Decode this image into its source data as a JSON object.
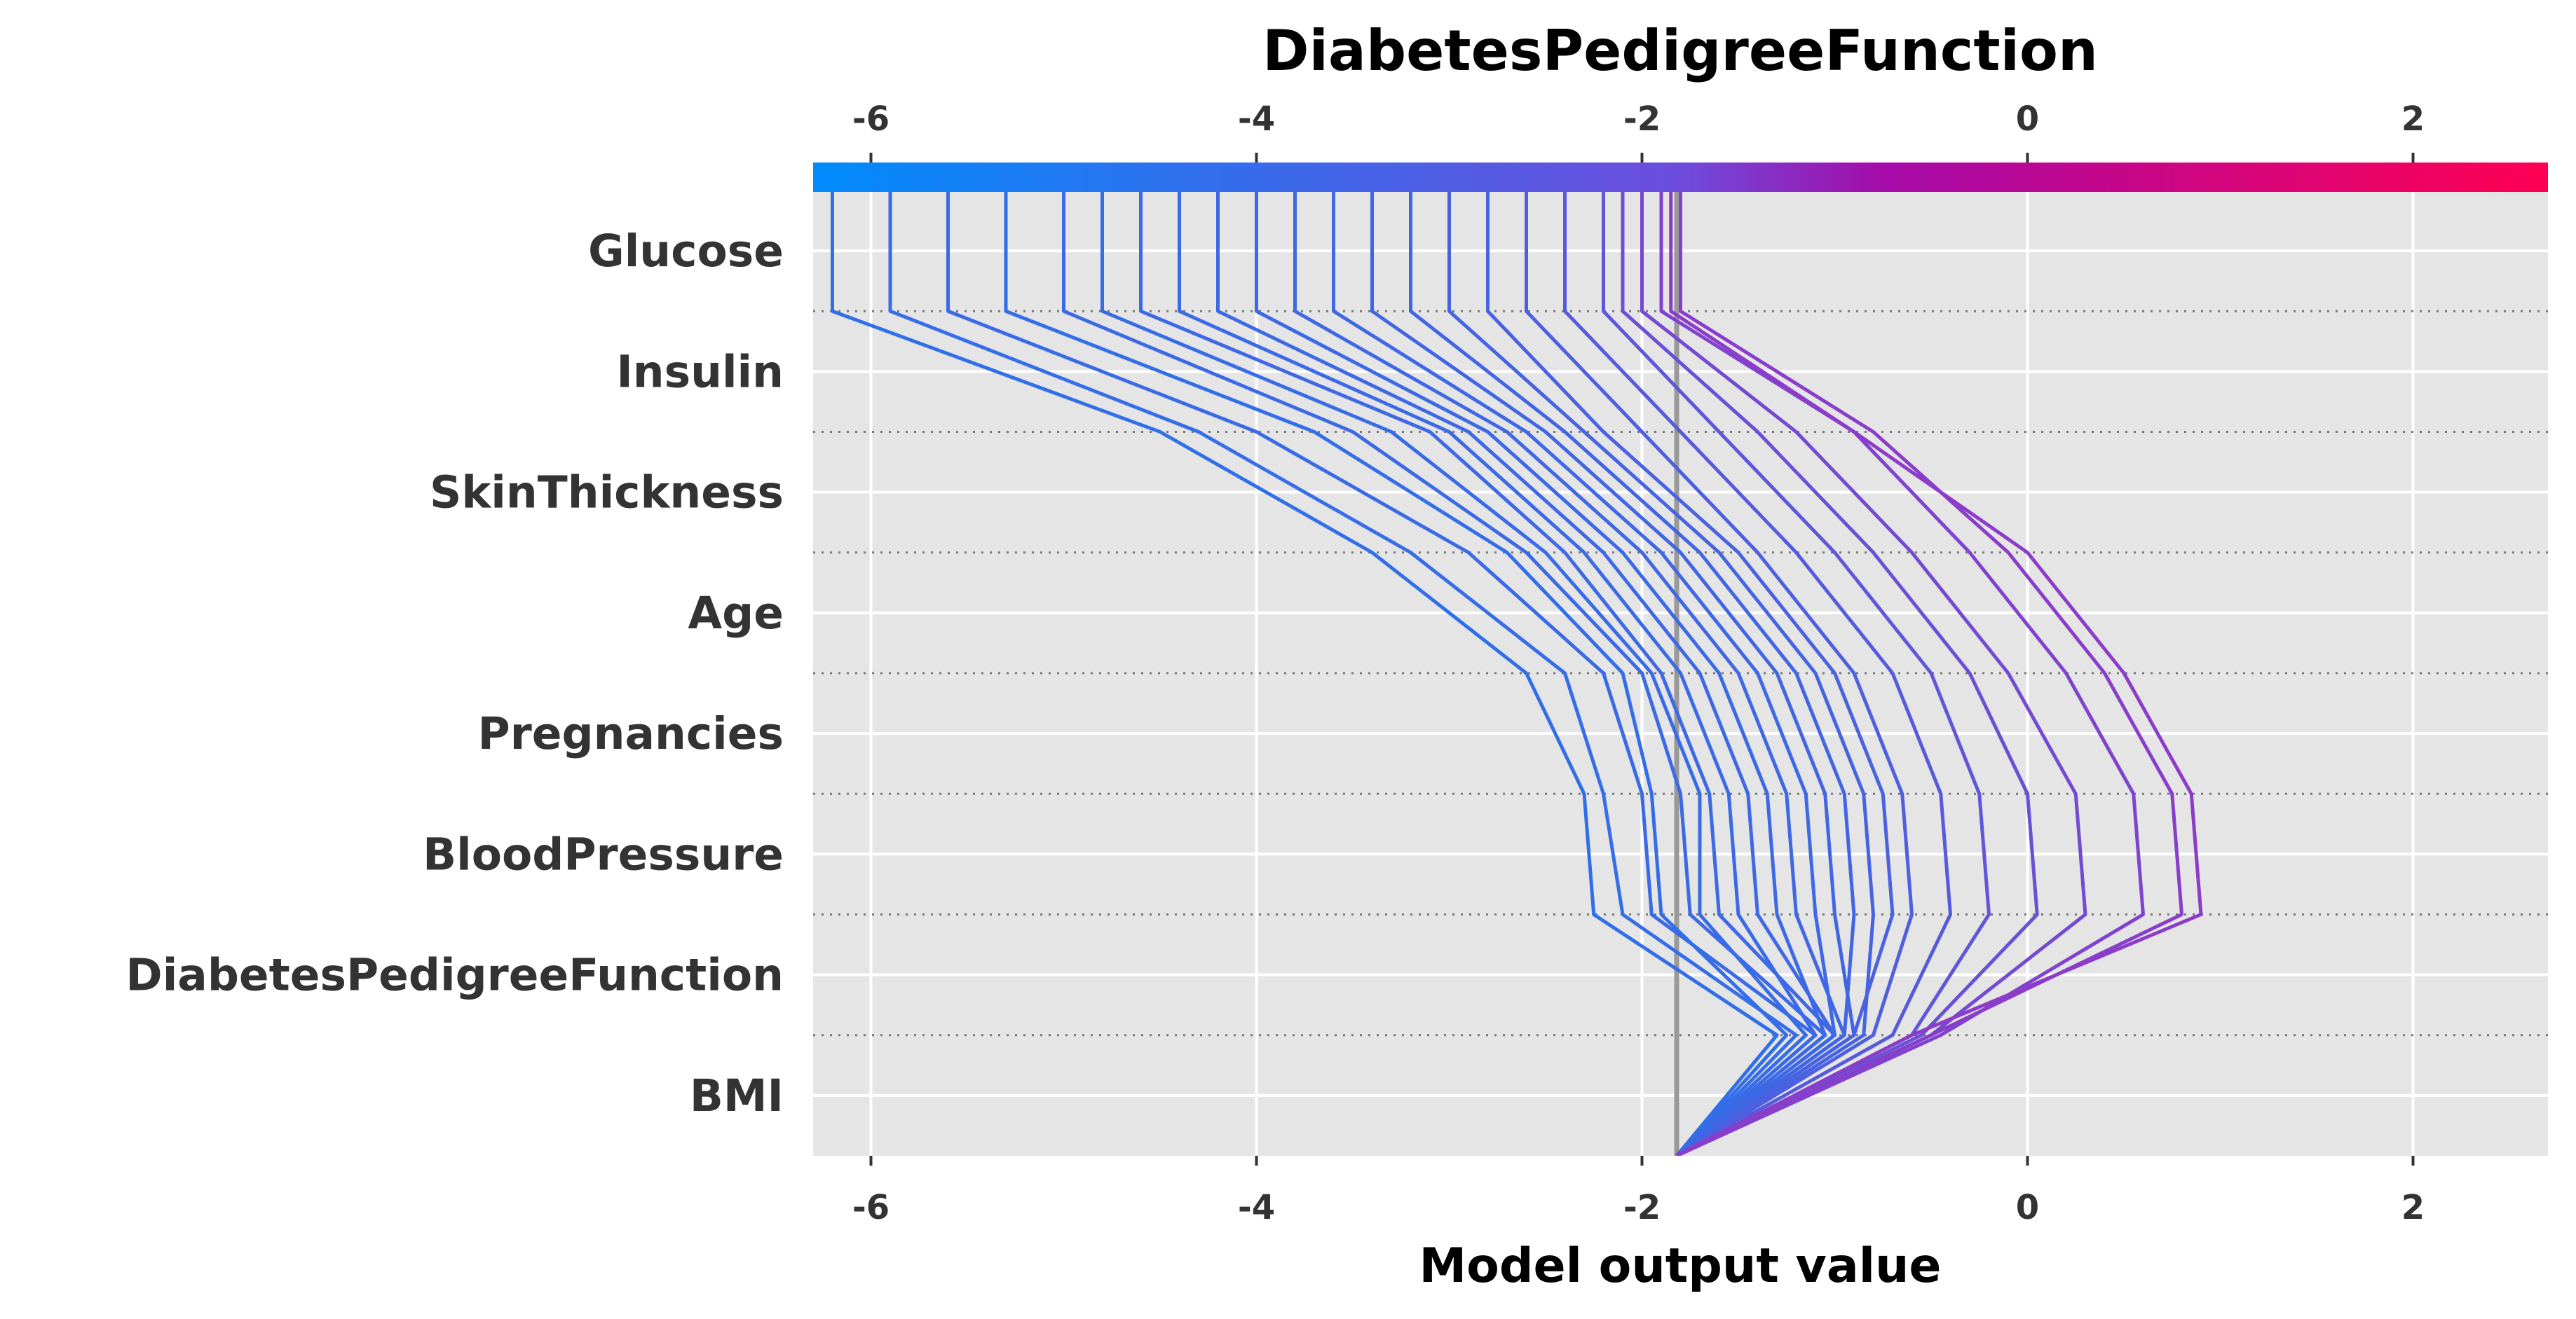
{
  "chart_data": {
    "type": "line",
    "title": "DiabetesPedigreeFunction",
    "xlabel": "Model output value",
    "xlim": [
      -6.3,
      2.7
    ],
    "xticks": [
      -6,
      -4,
      -2,
      0,
      2
    ],
    "top_xticks": [
      -6,
      -4,
      -2,
      0,
      2
    ],
    "base_value": -1.82,
    "features": [
      "Glucose",
      "Insulin",
      "SkinThickness",
      "Age",
      "Pregnancies",
      "BloodPressure",
      "DiabetesPedigreeFunction",
      "BMI"
    ],
    "colorbar": {
      "low_color": "#008bfb",
      "mid_color": "#a60aa8",
      "high_color": "#ff0052"
    },
    "background": "#e5e5e5",
    "grid": true,
    "series": [
      {
        "values": [
          -6.2,
          -4.5,
          -3.4,
          -2.6,
          -2.3,
          -2.25,
          -1.3,
          -1.82
        ]
      },
      {
        "values": [
          -5.9,
          -4.3,
          -3.2,
          -2.4,
          -2.2,
          -2.1,
          -1.2,
          -1.82
        ]
      },
      {
        "values": [
          -5.6,
          -4.0,
          -2.9,
          -2.2,
          -2.0,
          -1.95,
          -1.1,
          -1.82
        ]
      },
      {
        "values": [
          -5.3,
          -3.7,
          -2.7,
          -2.1,
          -1.95,
          -1.9,
          -1.25,
          -1.82
        ]
      },
      {
        "values": [
          -5.0,
          -3.5,
          -2.6,
          -2.0,
          -1.8,
          -1.75,
          -1.05,
          -1.82
        ]
      },
      {
        "values": [
          -4.8,
          -3.3,
          -2.5,
          -1.95,
          -1.7,
          -1.7,
          -1.15,
          -1.82
        ]
      },
      {
        "values": [
          -4.6,
          -3.1,
          -2.4,
          -1.9,
          -1.65,
          -1.6,
          -1.0,
          -1.82
        ]
      },
      {
        "values": [
          -4.4,
          -3.0,
          -2.3,
          -1.8,
          -1.55,
          -1.5,
          -1.1,
          -1.82
        ]
      },
      {
        "values": [
          -4.2,
          -2.9,
          -2.2,
          -1.7,
          -1.45,
          -1.4,
          -1.0,
          -1.82
        ]
      },
      {
        "values": [
          -4.0,
          -2.8,
          -2.1,
          -1.6,
          -1.35,
          -1.3,
          -1.05,
          -1.82
        ]
      },
      {
        "values": [
          -3.8,
          -2.7,
          -2.0,
          -1.5,
          -1.25,
          -1.2,
          -0.95,
          -1.82
        ]
      },
      {
        "values": [
          -3.6,
          -2.6,
          -1.9,
          -1.4,
          -1.15,
          -1.1,
          -1.0,
          -1.82
        ]
      },
      {
        "values": [
          -3.4,
          -2.5,
          -1.8,
          -1.3,
          -1.05,
          -1.0,
          -0.9,
          -1.82
        ]
      },
      {
        "values": [
          -3.2,
          -2.4,
          -1.7,
          -1.2,
          -0.95,
          -0.9,
          -0.95,
          -1.82
        ]
      },
      {
        "values": [
          -3.0,
          -2.3,
          -1.6,
          -1.1,
          -0.85,
          -0.8,
          -0.85,
          -1.82
        ]
      },
      {
        "values": [
          -2.8,
          -2.2,
          -1.5,
          -1.0,
          -0.75,
          -0.7,
          -0.9,
          -1.82
        ]
      },
      {
        "values": [
          -2.6,
          -2.0,
          -1.4,
          -0.9,
          -0.65,
          -0.6,
          -0.8,
          -1.82
        ]
      },
      {
        "values": [
          -2.4,
          -1.8,
          -1.2,
          -0.7,
          -0.45,
          -0.4,
          -0.7,
          -1.82
        ]
      },
      {
        "values": [
          -2.2,
          -1.6,
          -1.0,
          -0.5,
          -0.25,
          -0.2,
          -0.6,
          -1.82
        ]
      },
      {
        "values": [
          -2.1,
          -1.4,
          -0.8,
          -0.3,
          0.0,
          0.05,
          -0.55,
          -1.82
        ]
      },
      {
        "values": [
          -2.0,
          -1.2,
          -0.6,
          -0.1,
          0.25,
          0.3,
          -0.5,
          -1.82
        ]
      },
      {
        "values": [
          -1.9,
          -0.9,
          -0.3,
          0.2,
          0.55,
          0.6,
          -0.45,
          -1.82
        ]
      },
      {
        "values": [
          -1.8,
          -0.8,
          -0.1,
          0.4,
          0.75,
          0.8,
          -0.5,
          -1.82
        ]
      },
      {
        "values": [
          -1.85,
          -0.9,
          0.0,
          0.5,
          0.85,
          0.9,
          -0.6,
          -1.82
        ]
      }
    ]
  }
}
